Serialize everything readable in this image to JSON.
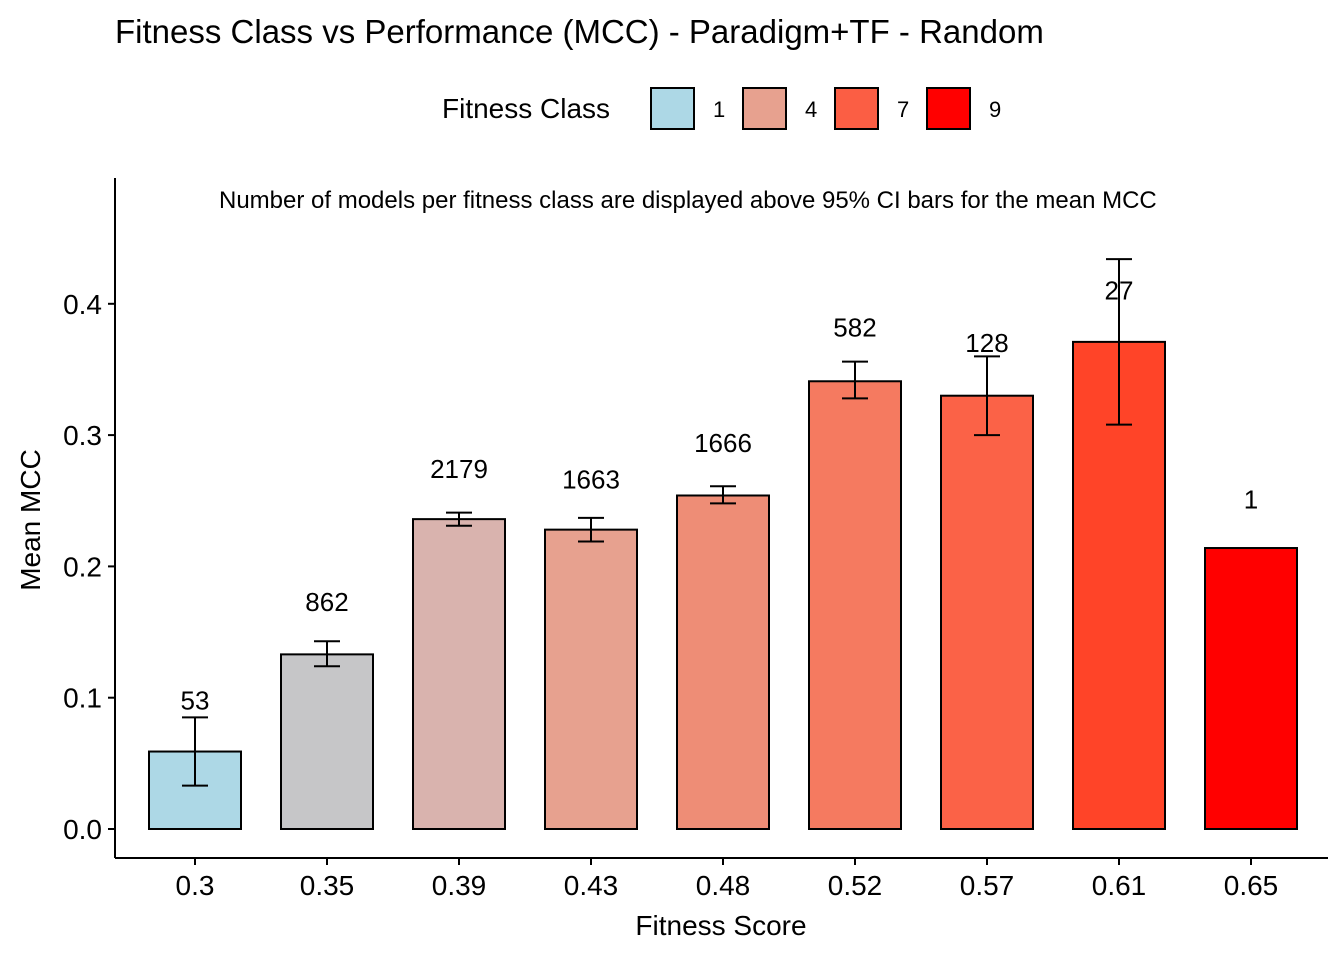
{
  "chart_data": {
    "type": "bar",
    "title": "Fitness Class vs Performance (MCC) - Paradigm+TF - Random",
    "subtitle": "Number of models per fitness class are displayed above 95% CI bars for the mean MCC",
    "xlabel": "Fitness Score",
    "ylabel": "Mean MCC",
    "ylim": [
      -0.02,
      0.49
    ],
    "yticks": [
      0.0,
      0.1,
      0.2,
      0.3,
      0.4
    ],
    "ytick_labels": [
      "0.0",
      "0.1",
      "0.2",
      "0.3",
      "0.4"
    ],
    "grid": false,
    "legend": {
      "title": "Fitness Class",
      "placement": "top",
      "entries": [
        {
          "label": "1",
          "color": "#ADD8E6"
        },
        {
          "label": "4",
          "color": "#E7A18F"
        },
        {
          "label": "7",
          "color": "#FB5E44"
        },
        {
          "label": "9",
          "color": "#FF0000"
        }
      ]
    },
    "categories": [
      "0.3",
      "0.35",
      "0.39",
      "0.43",
      "0.48",
      "0.52",
      "0.57",
      "0.61",
      "0.65"
    ],
    "values": [
      0.059,
      0.133,
      0.236,
      0.228,
      0.254,
      0.341,
      0.33,
      0.371,
      0.214
    ],
    "ci_low": [
      0.033,
      0.124,
      0.231,
      0.219,
      0.248,
      0.328,
      0.3,
      0.308,
      null
    ],
    "ci_high": [
      0.085,
      0.143,
      0.241,
      0.237,
      0.261,
      0.356,
      0.36,
      0.434,
      null
    ],
    "counts": [
      "53",
      "862",
      "2179",
      "1663",
      "1666",
      "582",
      "128",
      "27",
      "1"
    ],
    "count_values": [
      0.098,
      0.173,
      0.274,
      0.266,
      0.294,
      0.382,
      0.37,
      0.41,
      0.251
    ],
    "colors": [
      "#ADD8E6",
      "#C6C6C8",
      "#D9B3AE",
      "#E7A18F",
      "#EE8D76",
      "#F57A60",
      "#FB6247",
      "#FF4428",
      "#FF0000"
    ]
  }
}
